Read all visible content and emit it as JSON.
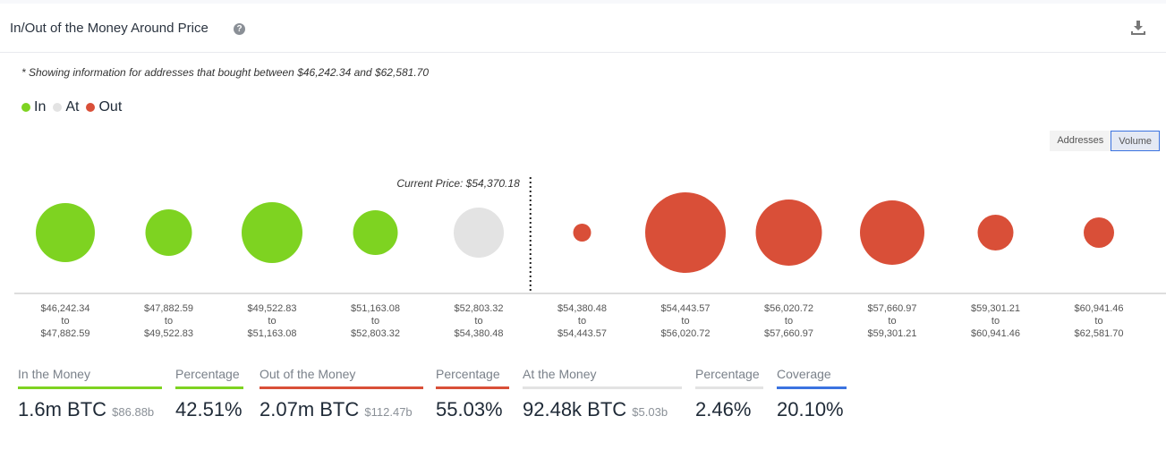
{
  "header": {
    "title": "In/Out of the Money Around Price",
    "help_icon": "question-circle-icon",
    "download_icon": "download-icon"
  },
  "note": "* Showing information for addresses that bought between $46,242.34 and $62,581.70",
  "legend": [
    {
      "label": "In",
      "color": "#7ed321"
    },
    {
      "label": "At",
      "color": "#e3e3e3"
    },
    {
      "label": "Out",
      "color": "#d94f38"
    }
  ],
  "toggle": {
    "addresses": "Addresses",
    "volume": "Volume",
    "selected": "Volume"
  },
  "chart_data": {
    "type": "bubble",
    "current_price_label": "Current Price: $54,370.18",
    "current_price_after_index": 4,
    "bins": [
      {
        "from": "$46,242.34",
        "to_word": "to",
        "to": "$47,882.59",
        "status": "In",
        "relative_size": 33
      },
      {
        "from": "$47,882.59",
        "to_word": "to",
        "to": "$49,522.83",
        "status": "In",
        "relative_size": 26
      },
      {
        "from": "$49,522.83",
        "to_word": "to",
        "to": "$51,163.08",
        "status": "In",
        "relative_size": 34
      },
      {
        "from": "$51,163.08",
        "to_word": "to",
        "to": "$52,803.32",
        "status": "In",
        "relative_size": 25
      },
      {
        "from": "$52,803.32",
        "to_word": "to",
        "to": "$54,380.48",
        "status": "At",
        "relative_size": 28
      },
      {
        "from": "$54,380.48",
        "to_word": "to",
        "to": "$54,443.57",
        "status": "Out",
        "relative_size": 10
      },
      {
        "from": "$54,443.57",
        "to_word": "to",
        "to": "$56,020.72",
        "status": "Out",
        "relative_size": 45
      },
      {
        "from": "$56,020.72",
        "to_word": "to",
        "to": "$57,660.97",
        "status": "Out",
        "relative_size": 37
      },
      {
        "from": "$57,660.97",
        "to_word": "to",
        "to": "$59,301.21",
        "status": "Out",
        "relative_size": 36
      },
      {
        "from": "$59,301.21",
        "to_word": "to",
        "to": "$60,941.46",
        "status": "Out",
        "relative_size": 20
      },
      {
        "from": "$60,941.46",
        "to_word": "to",
        "to": "$62,581.70",
        "status": "Out",
        "relative_size": 17
      }
    ]
  },
  "stats": [
    {
      "label": "In the Money",
      "value": "1.6m BTC",
      "sub": "$86.88b",
      "color": "#7ed321"
    },
    {
      "label": "Percentage",
      "value": "42.51%",
      "sub": "",
      "color": "#7ed321"
    },
    {
      "label": "Out of the Money",
      "value": "2.07m BTC",
      "sub": "$112.47b",
      "color": "#d94f38"
    },
    {
      "label": "Percentage",
      "value": "55.03%",
      "sub": "",
      "color": "#d94f38"
    },
    {
      "label": "At the Money",
      "value": "92.48k BTC",
      "sub": "$5.03b",
      "color": "#e3e3e3"
    },
    {
      "label": "Percentage",
      "value": "2.46%",
      "sub": "",
      "color": "#e3e3e3"
    },
    {
      "label": "Coverage",
      "value": "20.10%",
      "sub": "",
      "color": "#3b73e0"
    }
  ]
}
